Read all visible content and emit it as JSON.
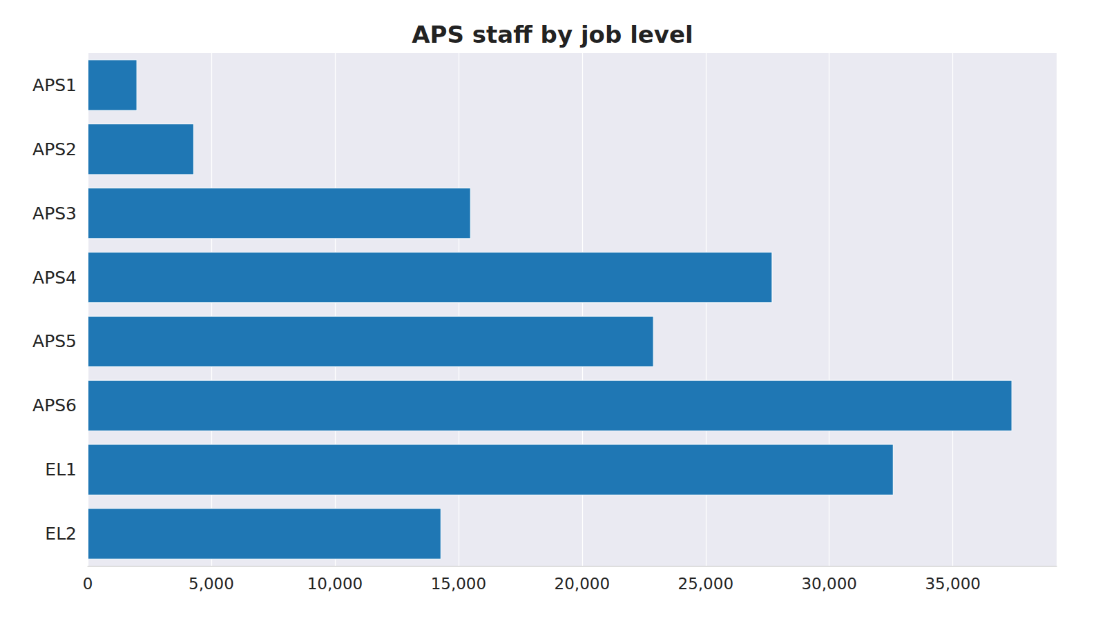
{
  "chart_data": {
    "type": "bar",
    "title": "APS staff by job level",
    "orientation": "horizontal",
    "categories": [
      "APS1",
      "APS2",
      "APS3",
      "APS4",
      "APS5",
      "APS6",
      "EL1",
      "EL2"
    ],
    "values": [
      2000,
      4300,
      15500,
      27700,
      22900,
      37400,
      32600,
      14300
    ],
    "color": "#1f77b4",
    "xlim": [
      0,
      39200
    ],
    "xticks": [
      0,
      {
        "value": 5000,
        "label": "5,000"
      },
      {
        "value": 10000,
        "label": "10,000"
      },
      {
        "value": 15000,
        "label": "15,000"
      },
      {
        "value": 20000,
        "label": "20,000"
      },
      {
        "value": 25000,
        "label": "25,000"
      },
      {
        "value": 30000,
        "label": "30,000"
      },
      {
        "value": 35000,
        "label": "35,000"
      }
    ],
    "grid": true
  }
}
